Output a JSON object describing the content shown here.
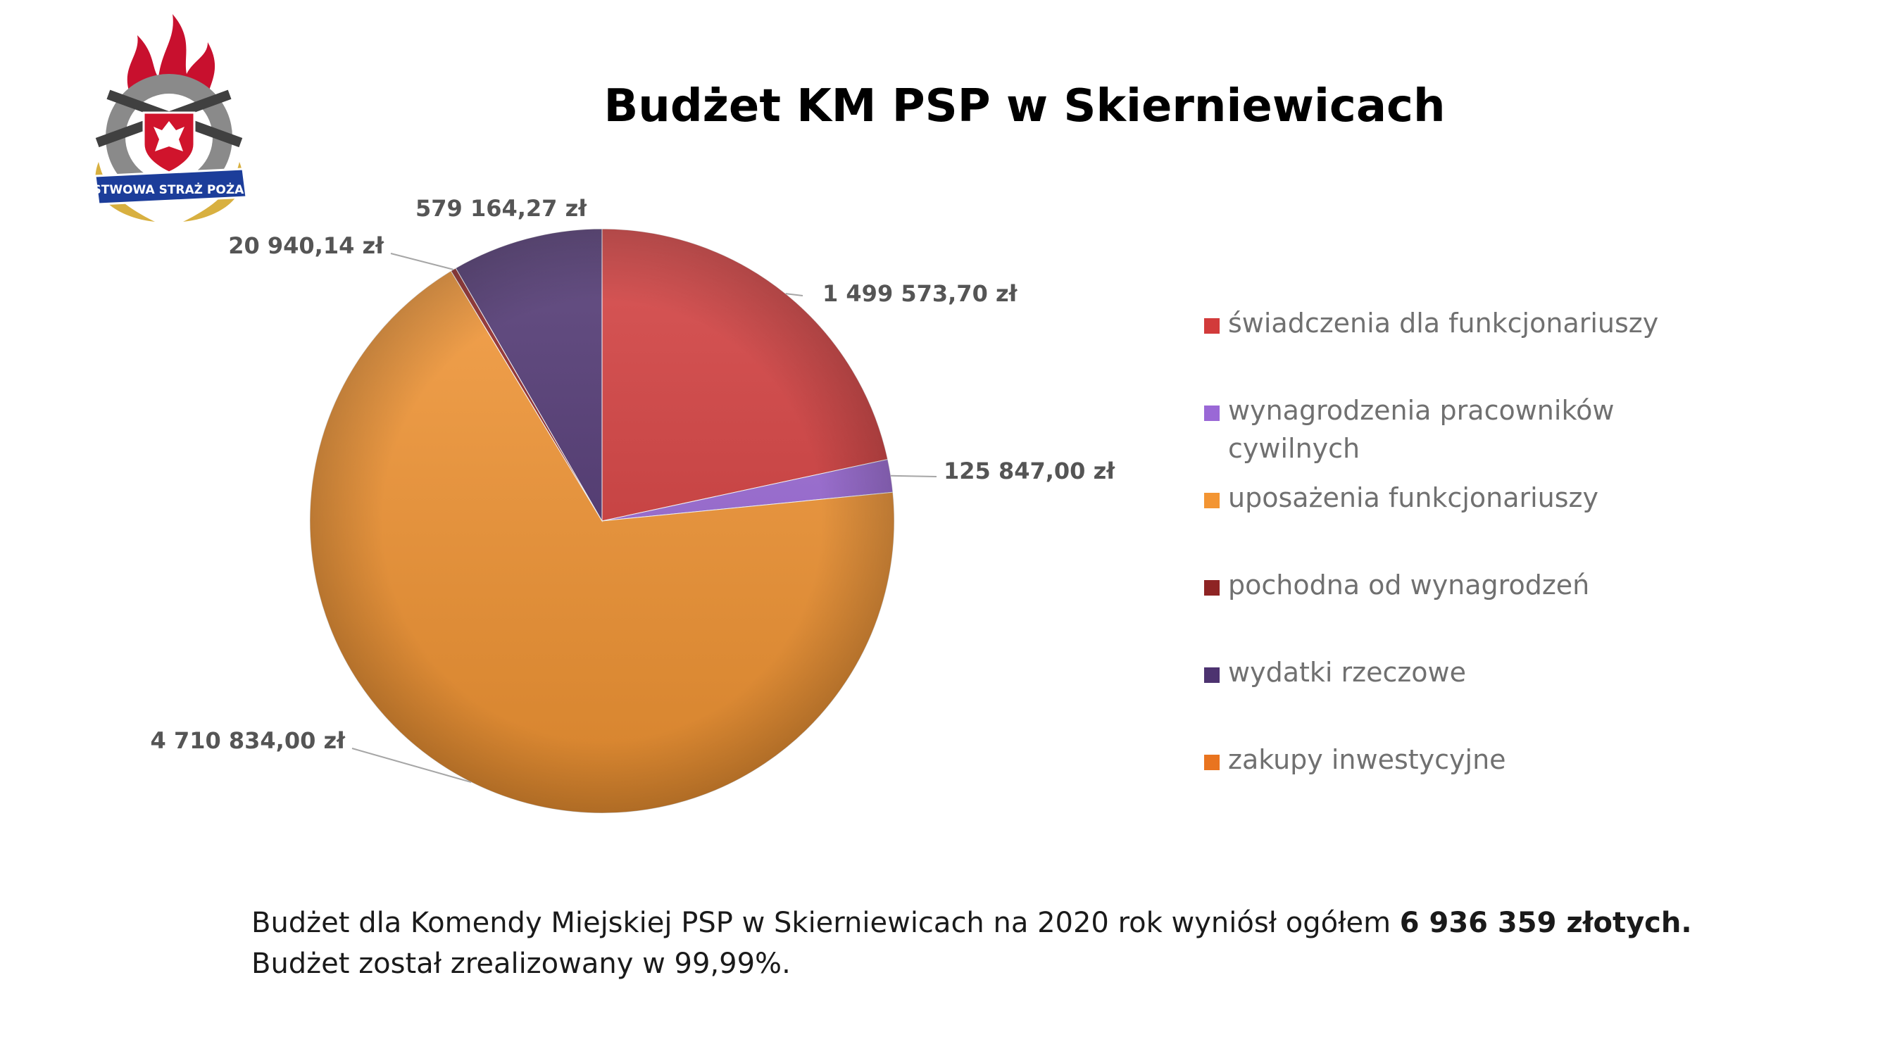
{
  "chart_data": {
    "type": "pie",
    "title": "Budżet KM PSP w Skierniewicach",
    "unit": "zł",
    "slices": [
      {
        "name": "świadczenia dla funkcjonariuszy",
        "value": 1499573.7,
        "label": "1 499 573,70 zł",
        "color": "#d23b3b"
      },
      {
        "name": "wynagrodzenia pracowników cywilnych",
        "value": 125847.0,
        "label": "125 847,00 zł",
        "color": "#9a68d6"
      },
      {
        "name": "uposażenia funkcjonariuszy",
        "value": 4710834.0,
        "label": "4 710 834,00 zł",
        "color": "#f39533"
      },
      {
        "name": "pochodna od wynagrodzeń",
        "value": 20940.14,
        "label": "20 940,14 zł",
        "color": "#8e2424"
      },
      {
        "name": "wydatki rzeczowe",
        "value": 579164.27,
        "label": "579 164,27 zł",
        "color": "#4d3370"
      },
      {
        "name": "zakupy inwestycyjne",
        "value": 0,
        "label": "",
        "color": "#e9741f"
      }
    ],
    "legend_position": "right"
  },
  "legend": [
    {
      "line1": "świadczenia dla funkcjonariuszy",
      "line2": "",
      "color": "#d23b3b"
    },
    {
      "line1": "wynagrodzenia pracowników",
      "line2": "cywilnych",
      "color": "#9a68d6"
    },
    {
      "line1": "uposażenia funkcjonariuszy",
      "line2": "",
      "color": "#f39533"
    },
    {
      "line1": "pochodna od wynagrodzeń",
      "line2": "",
      "color": "#8e2424"
    },
    {
      "line1": "wydatki rzeczowe",
      "line2": "",
      "color": "#4d3370"
    },
    {
      "line1": "zakupy inwestycyjne",
      "line2": "",
      "color": "#e9741f"
    }
  ],
  "logo": {
    "icon": "fire-service-emblem-icon",
    "text": "PAŃSTWOWA STRAŻ POŻARNA"
  },
  "footer": {
    "line1_prefix": "Budżet dla Komendy Miejskiej PSP w Skierniewicach na 2020 rok wyniósł ogółem",
    "line1_bold": "6 936 359 złotych.",
    "line2": "Budżet został zrealizowany w 99,99%."
  }
}
